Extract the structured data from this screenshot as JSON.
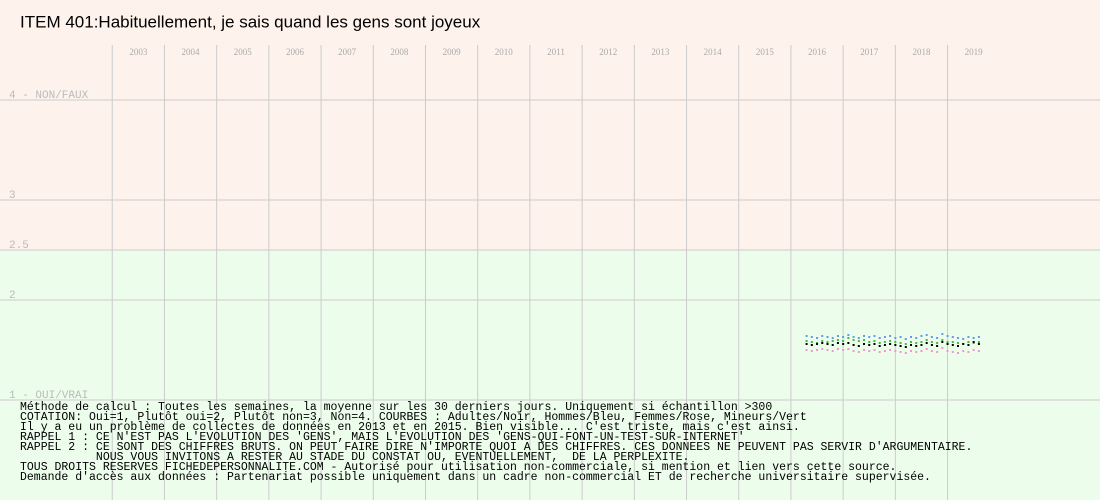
{
  "chart_data": {
    "type": "scatter",
    "title": "ITEM 401:Habituellement, je sais quand les gens sont joyeux",
    "xlim": [
      2000.85,
      2021.92
    ],
    "ylim": [
      0,
      5
    ],
    "xticks": [
      {
        "value": 2003,
        "label": "2003"
      },
      {
        "value": 2004,
        "label": "2004"
      },
      {
        "value": 2005,
        "label": "2005"
      },
      {
        "value": 2006,
        "label": "2006"
      },
      {
        "value": 2007,
        "label": "2007"
      },
      {
        "value": 2008,
        "label": "2008"
      },
      {
        "value": 2009,
        "label": "2009"
      },
      {
        "value": 2010,
        "label": "2010"
      },
      {
        "value": 2011,
        "label": "2011"
      },
      {
        "value": 2012,
        "label": "2012"
      },
      {
        "value": 2013,
        "label": "2013"
      },
      {
        "value": 2014,
        "label": "2014"
      },
      {
        "value": 2015,
        "label": "2015"
      },
      {
        "value": 2016,
        "label": "2016"
      },
      {
        "value": 2017,
        "label": "2017"
      },
      {
        "value": 2018,
        "label": "2018"
      },
      {
        "value": 2019,
        "label": "2019"
      }
    ],
    "yticks": [
      {
        "value": 4,
        "label": "4 - NON/FAUX"
      },
      3,
      2.5,
      2,
      {
        "value": 1,
        "label": "1 - OUI/VRAI"
      }
    ],
    "grid": true,
    "zones": [
      {
        "from": 2.5,
        "to": 5,
        "color": "#fdf2ec"
      },
      {
        "from": 0,
        "to": 2.5,
        "color": "#edfdec"
      }
    ],
    "x": [
      2016.3,
      2016.4,
      2016.5,
      2016.6,
      2016.7,
      2016.8,
      2016.9,
      2017.0,
      2017.1,
      2017.2,
      2017.3,
      2017.4,
      2017.5,
      2017.6,
      2017.7,
      2017.8,
      2017.9,
      2018.0,
      2018.1,
      2018.2,
      2018.3,
      2018.4,
      2018.5,
      2018.6,
      2018.7,
      2018.8,
      2018.9,
      2019.0,
      2019.1,
      2019.2,
      2019.3,
      2019.4,
      2019.5,
      2019.6
    ],
    "series": [
      {
        "color": "#6699ee",
        "values": [
          1.64,
          1.63,
          1.62,
          1.64,
          1.63,
          1.62,
          1.64,
          1.63,
          1.65,
          1.63,
          1.62,
          1.64,
          1.63,
          1.64,
          1.62,
          1.63,
          1.64,
          1.62,
          1.63,
          1.61,
          1.63,
          1.62,
          1.64,
          1.65,
          1.63,
          1.62,
          1.66,
          1.64,
          1.63,
          1.62,
          1.61,
          1.63,
          1.62,
          1.63
        ]
      },
      {
        "color": "#44bb44",
        "values": [
          1.59,
          1.58,
          1.57,
          1.59,
          1.58,
          1.59,
          1.6,
          1.59,
          1.62,
          1.6,
          1.59,
          1.6,
          1.58,
          1.59,
          1.57,
          1.58,
          1.59,
          1.58,
          1.57,
          1.56,
          1.58,
          1.57,
          1.58,
          1.6,
          1.58,
          1.57,
          1.6,
          1.58,
          1.58,
          1.57,
          1.56,
          1.58,
          1.57,
          1.58
        ]
      },
      {
        "color": "#000000",
        "values": [
          1.56,
          1.55,
          1.56,
          1.57,
          1.56,
          1.55,
          1.57,
          1.56,
          1.57,
          1.55,
          1.54,
          1.56,
          1.55,
          1.56,
          1.54,
          1.55,
          1.56,
          1.55,
          1.54,
          1.53,
          1.55,
          1.54,
          1.55,
          1.57,
          1.55,
          1.54,
          1.58,
          1.56,
          1.55,
          1.54,
          1.56,
          1.55,
          1.58,
          1.56
        ]
      },
      {
        "color": "#ee99cc",
        "values": [
          1.5,
          1.49,
          1.5,
          1.51,
          1.5,
          1.49,
          1.51,
          1.5,
          1.51,
          1.49,
          1.48,
          1.5,
          1.49,
          1.5,
          1.48,
          1.49,
          1.5,
          1.49,
          1.48,
          1.47,
          1.49,
          1.48,
          1.49,
          1.51,
          1.49,
          1.48,
          1.52,
          1.49,
          1.48,
          1.47,
          1.49,
          1.48,
          1.5,
          1.49
        ]
      }
    ],
    "notes": [
      "Méthode de calcul : Toutes les semaines, la moyenne sur les 30 derniers jours. Uniquement si échantillon >300",
      "COTATION: Oui=1, Plutôt oui=2, Plutôt non=3, Non=4. COURBES : Adultes/Noir, Hommes/Bleu, Femmes/Rose, Mineurs/Vert",
      "Il y a eu un problème de collectes de données en 2013 et en 2015. Bien visible... C'est triste, mais c'est ainsi.",
      "RAPPEL 1 : CE N'EST PAS L'EVOLUTION DES 'GENS', MAIS L'EVOLUTION DES 'GENS-QUI-FONT-UN-TEST-SUR-INTERNET'",
      "RAPPEL 2 : CE SONT DES CHIFFRES BRUTS. ON PEUT FAIRE DIRE N'IMPORTE QUOI A DES CHIFFRES. CES DONNEES NE PEUVENT PAS SERVIR D'ARGUMENTAIRE.",
      "           NOUS VOUS INVITONS A RESTER AU STADE DU CONSTAT OU, EVENTUELLEMENT,  DE LA PERPLEXITE.",
      "TOUS DROITS RESERVES FICHEDEPERSONNALITE.COM - Autorisé pour utilisation non-commerciale, si mention et lien vers cette source.",
      "Demande d'accès aux données : Partenariat possible uniquement dans un cadre non-commercial ET de recherche universitaire supervisée."
    ]
  }
}
